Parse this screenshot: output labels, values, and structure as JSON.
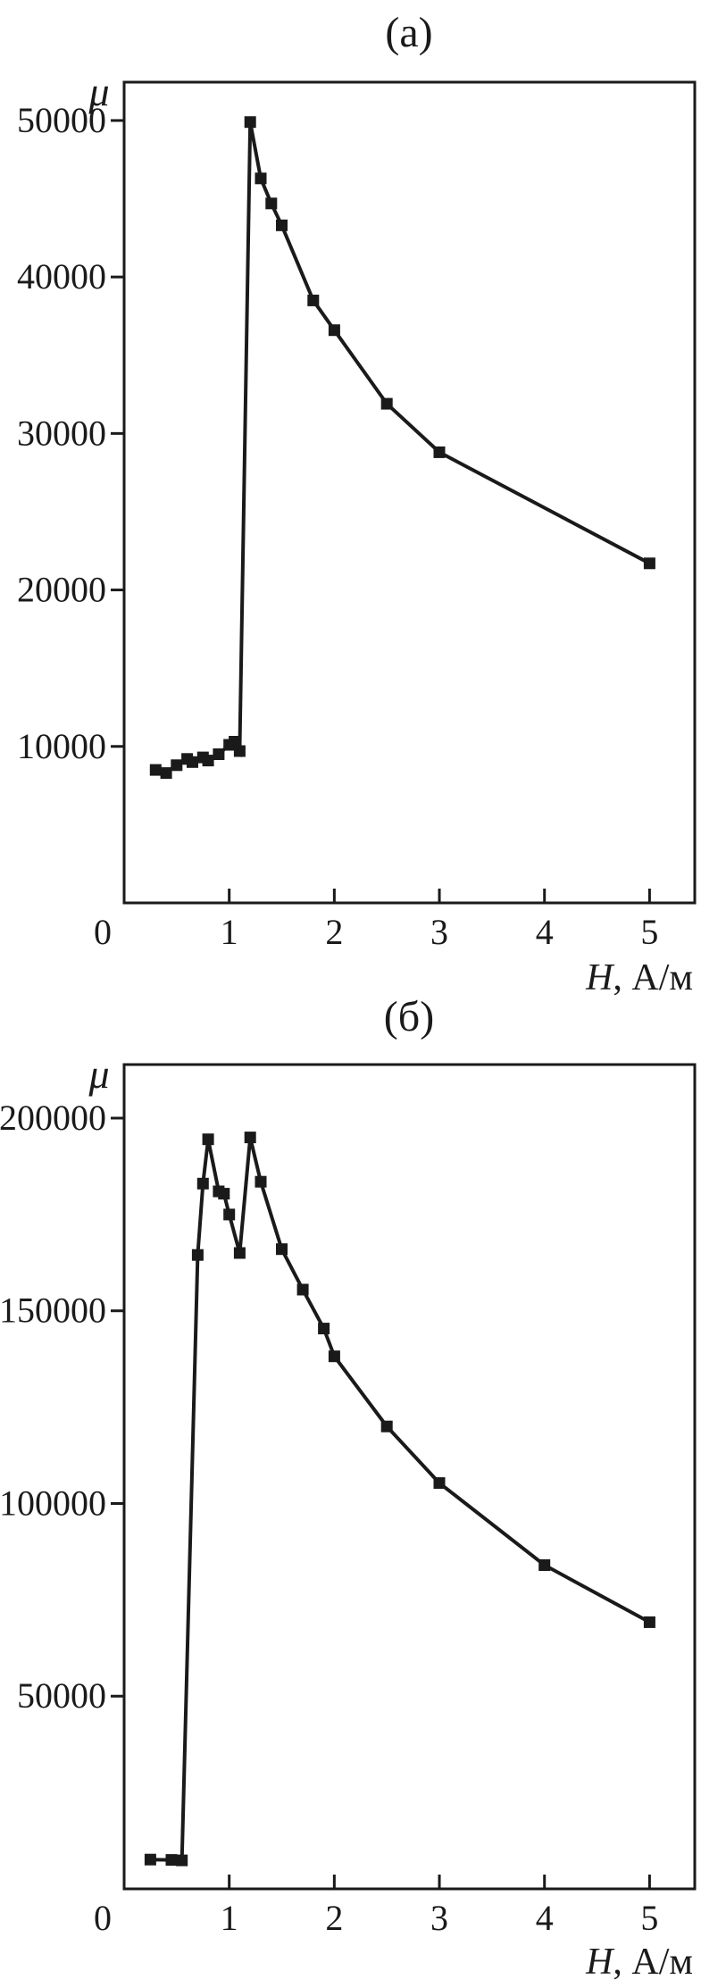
{
  "chart_data": [
    {
      "type": "line",
      "panel": "a",
      "title": "(а)",
      "xlabel": "H, А/м",
      "ylabel": "μ",
      "x_ticks": [
        0,
        1,
        2,
        3,
        4,
        5
      ],
      "y_ticks": [
        10000,
        20000,
        30000,
        40000,
        50000
      ],
      "xlim": [
        0,
        5.43
      ],
      "ylim": [
        0,
        52450
      ],
      "grid": false,
      "legend": null,
      "marker": "filled-square",
      "line_color": "#1a1a1a",
      "x": [
        0.3,
        0.4,
        0.5,
        0.6,
        0.65,
        0.75,
        0.8,
        0.9,
        1.0,
        1.05,
        1.1,
        1.2,
        1.3,
        1.4,
        1.5,
        1.8,
        2.0,
        2.5,
        3.0,
        5.0
      ],
      "y": [
        8500,
        8300,
        8800,
        9200,
        9000,
        9300,
        9100,
        9500,
        10100,
        10300,
        9700,
        49900,
        46300,
        44700,
        43300,
        38500,
        36600,
        31900,
        28800,
        21700
      ]
    },
    {
      "type": "line",
      "panel": "b",
      "title": "(б)",
      "xlabel": "H, А/м",
      "ylabel": "μ",
      "x_ticks": [
        0,
        1,
        2,
        3,
        4,
        5
      ],
      "y_ticks": [
        50000,
        100000,
        150000,
        200000
      ],
      "xlim": [
        0,
        5.43
      ],
      "ylim": [
        0,
        213900
      ],
      "grid": false,
      "legend": null,
      "marker": "filled-square",
      "line_color": "#1a1a1a",
      "x": [
        0.25,
        0.45,
        0.55,
        0.7,
        0.75,
        0.8,
        0.9,
        0.95,
        1.0,
        1.1,
        1.2,
        1.3,
        1.5,
        1.7,
        1.9,
        2.0,
        2.5,
        3.0,
        4.0,
        5.0
      ],
      "y": [
        7600,
        7500,
        7400,
        164500,
        183000,
        194500,
        181000,
        180400,
        175000,
        165000,
        195000,
        183500,
        166000,
        155500,
        145400,
        138200,
        120000,
        105300,
        84000,
        69200
      ]
    }
  ]
}
